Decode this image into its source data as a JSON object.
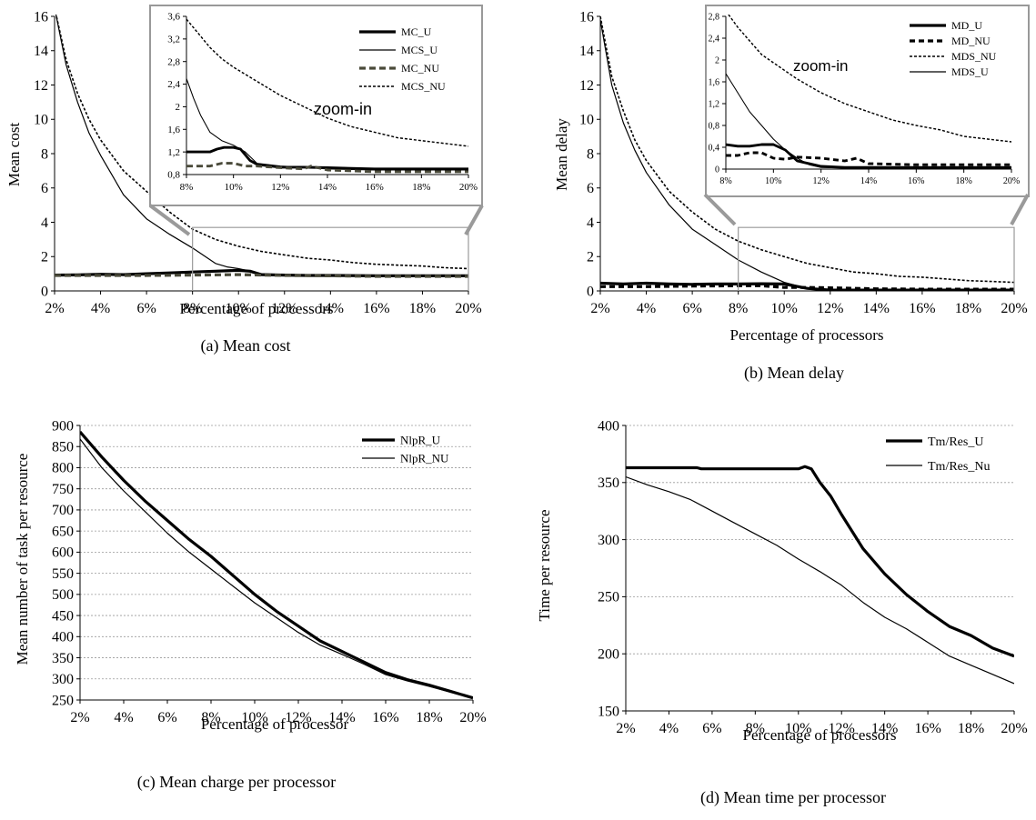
{
  "charts": [
    {
      "type": "line",
      "xlabel": "Percentage of processors",
      "ylabel": "Mean cost",
      "caption": "(a) Mean cost",
      "xlim": [
        2,
        20
      ],
      "ylim": [
        0,
        16
      ],
      "yticks": [
        0,
        2,
        4,
        6,
        8,
        10,
        12,
        14,
        16
      ],
      "ytick_labels": [
        "0",
        "2",
        "4",
        "6",
        "8",
        "10",
        "12",
        "14",
        "16"
      ],
      "xticks": [
        2,
        4,
        6,
        8,
        10,
        12,
        14,
        16,
        18,
        20
      ],
      "xtick_labels": [
        "2%",
        "4%",
        "6%",
        "8%",
        "10%",
        "12%",
        "14%",
        "16%",
        "18%",
        "20%"
      ],
      "series": [
        {
          "name": "MC_U",
          "x": [
            2,
            3,
            4,
            5,
            6,
            7,
            8,
            9,
            10,
            10.5,
            11,
            12,
            13,
            14,
            16,
            18,
            20
          ],
          "y": [
            0.92,
            0.93,
            0.97,
            0.95,
            1.0,
            1.05,
            1.1,
            1.15,
            1.2,
            1.15,
            0.95,
            0.92,
            0.9,
            0.9,
            0.88,
            0.88,
            0.88
          ]
        },
        {
          "name": "MCS_U",
          "x": [
            2,
            2.5,
            3,
            3.5,
            4,
            5,
            6,
            7,
            8,
            8.5,
            9,
            9.5,
            10,
            11,
            12,
            14,
            16,
            18,
            20
          ],
          "y": [
            16.5,
            13.2,
            11.0,
            9.2,
            7.9,
            5.6,
            4.2,
            3.3,
            2.5,
            2.05,
            1.6,
            1.4,
            1.3,
            1.0,
            0.95,
            0.9,
            0.88,
            0.88,
            0.88
          ]
        },
        {
          "name": "MC_NU",
          "x": [
            2,
            4,
            6,
            8,
            10,
            12,
            14,
            16,
            18,
            20
          ],
          "y": [
            0.9,
            0.9,
            0.9,
            0.92,
            0.95,
            0.9,
            0.88,
            0.85,
            0.85,
            0.85
          ]
        },
        {
          "name": "MCS_NU",
          "x": [
            2,
            2.5,
            3,
            3.5,
            4,
            5,
            6,
            7,
            8,
            9,
            10,
            11,
            12,
            13,
            14,
            15,
            16,
            17,
            18,
            19,
            20
          ],
          "y": [
            16.5,
            13.5,
            11.5,
            10.0,
            8.8,
            7.0,
            5.8,
            4.6,
            3.6,
            3.0,
            2.6,
            2.3,
            2.1,
            1.9,
            1.8,
            1.65,
            1.55,
            1.5,
            1.45,
            1.35,
            1.3
          ]
        }
      ],
      "inset": {
        "label": "zoom-in",
        "xlim": [
          8,
          20
        ],
        "ylim": [
          0.8,
          3.6
        ],
        "yticks": [
          0.8,
          1.2,
          1.6,
          2.0,
          2.4,
          2.8,
          3.2,
          3.6
        ],
        "ytick_labels": [
          "0,8",
          "1,2",
          "1,6",
          "2",
          "2,4",
          "2,8",
          "3,2",
          "3,6"
        ],
        "xticks": [
          8,
          10,
          12,
          14,
          16,
          18,
          20
        ],
        "xtick_labels": [
          "8%",
          "10%",
          "12%",
          "14%",
          "16%",
          "18%",
          "20%"
        ],
        "series": [
          {
            "name": "MC_U",
            "x": [
              8,
              8.5,
              9,
              9.3,
              9.6,
              10,
              10.3,
              10.7,
              11,
              12,
              13,
              14,
              16,
              18,
              20
            ],
            "y": [
              1.2,
              1.2,
              1.2,
              1.25,
              1.28,
              1.28,
              1.25,
              1.05,
              0.98,
              0.93,
              0.93,
              0.92,
              0.9,
              0.9,
              0.9
            ]
          },
          {
            "name": "MCS_U",
            "x": [
              8,
              8.3,
              8.6,
              9,
              9.5,
              10,
              10.5,
              11,
              12,
              13,
              14,
              16,
              18,
              20
            ],
            "y": [
              2.5,
              2.15,
              1.85,
              1.55,
              1.4,
              1.32,
              1.2,
              1.0,
              0.95,
              0.93,
              0.9,
              0.88,
              0.88,
              0.88
            ]
          },
          {
            "name": "MC_NU",
            "x": [
              8,
              8.5,
              9,
              9.5,
              10,
              10.5,
              11,
              12,
              13,
              13.3,
              14,
              16,
              18,
              20
            ],
            "y": [
              0.95,
              0.95,
              0.95,
              1.0,
              1.0,
              0.95,
              0.95,
              0.92,
              0.9,
              0.95,
              0.88,
              0.85,
              0.85,
              0.85
            ]
          },
          {
            "name": "MCS_NU",
            "x": [
              8,
              8.5,
              9,
              9.5,
              10,
              11,
              12,
              13,
              14,
              15,
              16,
              17,
              18,
              19,
              20
            ],
            "y": [
              3.55,
              3.3,
              3.05,
              2.85,
              2.7,
              2.45,
              2.2,
              2.0,
              1.8,
              1.65,
              1.55,
              1.45,
              1.4,
              1.35,
              1.3
            ]
          }
        ]
      }
    },
    {
      "type": "line",
      "xlabel": "Percentage of processors",
      "ylabel": "Mean delay",
      "caption": "(b) Mean delay",
      "xlim": [
        2,
        20
      ],
      "ylim": [
        0,
        16
      ],
      "yticks": [
        0,
        2,
        4,
        6,
        8,
        10,
        12,
        14,
        16
      ],
      "ytick_labels": [
        "0",
        "2",
        "4",
        "6",
        "8",
        "10",
        "12",
        "14",
        "16"
      ],
      "xticks": [
        2,
        4,
        6,
        8,
        10,
        12,
        14,
        16,
        18,
        20
      ],
      "xtick_labels": [
        "2%",
        "4%",
        "6%",
        "8%",
        "10%",
        "12%",
        "14%",
        "16%",
        "18%",
        "20%"
      ],
      "series": [
        {
          "name": "MD_U",
          "x": [
            2,
            3,
            4,
            5,
            6,
            7,
            8,
            9,
            10,
            11,
            12,
            14,
            16,
            18,
            20
          ],
          "y": [
            0.45,
            0.4,
            0.45,
            0.4,
            0.38,
            0.4,
            0.4,
            0.42,
            0.4,
            0.15,
            0.05,
            0.05,
            0.05,
            0.05,
            0.05
          ]
        },
        {
          "name": "MD_NU",
          "x": [
            2,
            4,
            6,
            8,
            9,
            10,
            11,
            12,
            14,
            16,
            18,
            20
          ],
          "y": [
            0.25,
            0.25,
            0.28,
            0.3,
            0.3,
            0.2,
            0.2,
            0.18,
            0.12,
            0.1,
            0.1,
            0.1
          ]
        },
        {
          "name": "MDS_NU",
          "x": [
            2,
            2.5,
            3,
            3.5,
            4,
            5,
            6,
            7,
            8,
            9,
            10,
            11,
            12,
            13,
            14,
            15,
            16,
            17,
            18,
            19,
            20
          ],
          "y": [
            16.0,
            12.5,
            10.5,
            8.8,
            7.6,
            5.8,
            4.6,
            3.6,
            2.9,
            2.4,
            2.0,
            1.6,
            1.35,
            1.1,
            1.0,
            0.85,
            0.8,
            0.7,
            0.6,
            0.55,
            0.5
          ]
        },
        {
          "name": "MDS_U",
          "x": [
            2,
            2.5,
            3,
            3.5,
            4,
            5,
            6,
            7,
            8,
            9,
            10,
            11,
            12,
            14,
            16,
            18,
            20
          ],
          "y": [
            15.8,
            12.0,
            9.8,
            8.2,
            6.9,
            5.0,
            3.6,
            2.7,
            1.8,
            1.1,
            0.5,
            0.15,
            0.05,
            0.03,
            0.02,
            0.02,
            0.02
          ]
        }
      ],
      "inset": {
        "label": "zoom-in",
        "xlim": [
          8,
          20
        ],
        "ylim": [
          0,
          2.8
        ],
        "yticks": [
          0,
          0.4,
          0.8,
          1.2,
          1.6,
          2.0,
          2.4,
          2.8
        ],
        "ytick_labels": [
          "0",
          "0,4",
          "0,8",
          "1,2",
          "1,6",
          "2",
          "2,4",
          "2,8"
        ],
        "xticks": [
          8,
          10,
          12,
          14,
          16,
          18,
          20
        ],
        "xtick_labels": [
          "8%",
          "10%",
          "12%",
          "14%",
          "16%",
          "18%",
          "20%"
        ],
        "series": [
          {
            "name": "MD_U",
            "x": [
              8,
              8.5,
              9,
              9.5,
              10,
              10.5,
              11,
              12,
              13,
              14,
              16,
              18,
              20
            ],
            "y": [
              0.45,
              0.42,
              0.42,
              0.45,
              0.45,
              0.35,
              0.15,
              0.05,
              0.03,
              0.03,
              0.03,
              0.03,
              0.03
            ]
          },
          {
            "name": "MD_NU",
            "x": [
              8,
              8.5,
              9,
              9.5,
              10,
              10.5,
              11,
              12,
              13,
              13.5,
              14,
              16,
              18,
              20
            ],
            "y": [
              0.25,
              0.25,
              0.3,
              0.3,
              0.2,
              0.18,
              0.22,
              0.2,
              0.15,
              0.2,
              0.1,
              0.08,
              0.08,
              0.08
            ]
          },
          {
            "name": "MDS_NU",
            "x": [
              8,
              8.5,
              9,
              9.5,
              10,
              11,
              12,
              13,
              14,
              15,
              16,
              17,
              18,
              19,
              20
            ],
            "y": [
              2.9,
              2.6,
              2.35,
              2.1,
              1.95,
              1.65,
              1.4,
              1.2,
              1.05,
              0.9,
              0.8,
              0.72,
              0.6,
              0.55,
              0.5
            ]
          },
          {
            "name": "MDS_U",
            "x": [
              8,
              8.5,
              9,
              9.5,
              10,
              10.5,
              11,
              11.5,
              12,
              14,
              16,
              18,
              20
            ],
            "y": [
              1.75,
              1.4,
              1.05,
              0.8,
              0.55,
              0.35,
              0.2,
              0.08,
              0.03,
              0.02,
              0.02,
              0.02,
              0.02
            ]
          }
        ]
      }
    },
    {
      "type": "line",
      "xlabel": "Percentage of processor",
      "ylabel": "Mean number of task per resource",
      "caption": "(c) Mean charge per processor",
      "xlim": [
        2,
        20
      ],
      "ylim": [
        250,
        900
      ],
      "yticks": [
        250,
        300,
        350,
        400,
        450,
        500,
        550,
        600,
        650,
        700,
        750,
        800,
        850,
        900
      ],
      "ytick_labels": [
        "250",
        "300",
        "350",
        "400",
        "450",
        "500",
        "550",
        "600",
        "650",
        "700",
        "750",
        "800",
        "850",
        "900"
      ],
      "xticks": [
        2,
        4,
        6,
        8,
        10,
        12,
        14,
        16,
        18,
        20
      ],
      "xtick_labels": [
        "2%",
        "4%",
        "6%",
        "8%",
        "10%",
        "12%",
        "14%",
        "16%",
        "18%",
        "20%"
      ],
      "series": [
        {
          "name": "NlpR_U",
          "x": [
            2,
            3,
            4,
            5,
            6,
            7,
            8,
            9,
            10,
            11,
            12,
            13,
            14,
            15,
            16,
            17,
            18,
            19,
            20
          ],
          "y": [
            885,
            825,
            770,
            720,
            675,
            630,
            590,
            545,
            500,
            460,
            425,
            390,
            365,
            340,
            315,
            298,
            285,
            270,
            255
          ]
        },
        {
          "name": "NlpR_NU",
          "x": [
            2,
            3,
            4,
            5,
            6,
            7,
            8,
            9,
            10,
            11,
            12,
            13,
            14,
            15,
            16,
            17,
            18,
            19,
            20
          ],
          "y": [
            868,
            800,
            745,
            695,
            645,
            600,
            560,
            520,
            480,
            445,
            410,
            380,
            358,
            335,
            310,
            295,
            282,
            268,
            255
          ]
        }
      ]
    },
    {
      "type": "line",
      "xlabel": "Percentage of processors",
      "ylabel": "Time per resource",
      "caption": "(d) Mean time per processor",
      "xlim": [
        2,
        20
      ],
      "ylim": [
        150,
        400
      ],
      "yticks": [
        150,
        200,
        250,
        300,
        350,
        400
      ],
      "ytick_labels": [
        "150",
        "200",
        "250",
        "300",
        "350",
        "400"
      ],
      "xticks": [
        2,
        4,
        6,
        8,
        10,
        12,
        14,
        16,
        18,
        20
      ],
      "xtick_labels": [
        "2%",
        "4%",
        "6%",
        "8%",
        "10%",
        "12%",
        "14%",
        "16%",
        "18%",
        "20%"
      ],
      "series": [
        {
          "name": "Tm/Res_U",
          "x": [
            2,
            4,
            5.3,
            5.5,
            7,
            8,
            9,
            10,
            10.3,
            10.6,
            11,
            11.5,
            12,
            13,
            14,
            15,
            16,
            17,
            18,
            19,
            20
          ],
          "y": [
            363,
            363,
            363,
            362,
            362,
            362,
            362,
            362,
            364,
            362,
            350,
            338,
            322,
            292,
            270,
            252,
            237,
            224,
            216,
            205,
            198
          ]
        },
        {
          "name": "Tm/Res_Nu",
          "x": [
            2,
            3,
            4,
            5,
            6,
            7,
            8,
            9,
            10,
            11,
            12,
            13,
            14,
            15,
            16,
            17,
            18,
            19,
            20
          ],
          "y": [
            355,
            348,
            342,
            335,
            325,
            315,
            305,
            295,
            283,
            272,
            260,
            245,
            232,
            222,
            210,
            198,
            190,
            182,
            174
          ]
        }
      ]
    }
  ]
}
